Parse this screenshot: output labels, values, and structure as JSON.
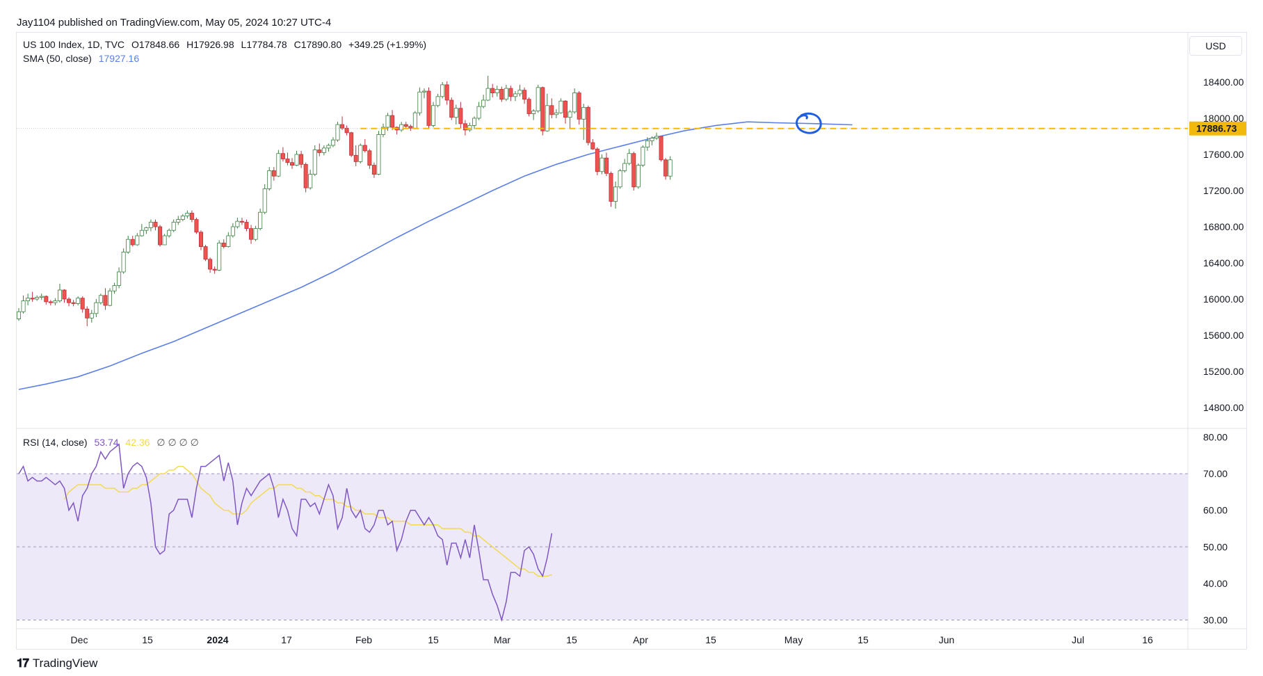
{
  "byline": "Jay1104 published on TradingView.com, May 05, 2024 10:27 UTC-4",
  "currency": "USD",
  "brand": "TradingView",
  "legend": {
    "symbol": "US 100 Index, 1D, TVC",
    "open": "O17848.66",
    "high": "H17926.98",
    "low": "L17784.78",
    "close": "C17890.80",
    "change": "+349.25 (+1.99%)",
    "sma_label": "SMA (50, close)",
    "sma_value": "17927.16",
    "rsi_label": "RSI (14, close)",
    "rsi_value": "53.74",
    "rsi_ma_value": "42.36",
    "rsi_extra": "∅ ∅ ∅ ∅"
  },
  "colors": {
    "up": "#26a69a",
    "up_fill": "#ffffff",
    "down": "#ef5350",
    "sma": "#5b7fe6",
    "rsi": "#7e57c2",
    "rsi_ma": "#f2d94a",
    "level": "#f0b90b",
    "annotation": "#1f5ee0"
  },
  "chart_data": [
    {
      "type": "candlestick",
      "title": "US 100 Index, 1D, TVC",
      "ylim": [
        14600,
        18800
      ],
      "yticks": [
        "14800.00",
        "15200.00",
        "15600.00",
        "16000.00",
        "16400.00",
        "16800.00",
        "17200.00",
        "17600.00",
        "18000.00",
        "18400.00"
      ],
      "price_label": "17886.73",
      "level": 17886.73,
      "x_ticks": [
        "Dec",
        "15",
        "2024",
        "17",
        "Feb",
        "15",
        "Mar",
        "15",
        "Apr",
        "15",
        "May",
        "15",
        "Jun",
        "Jul",
        "16"
      ],
      "candles": [
        [
          15780,
          15900,
          15760,
          15860
        ],
        [
          15860,
          16040,
          15840,
          15980
        ],
        [
          15980,
          16060,
          15930,
          16010
        ],
        [
          16010,
          16080,
          15970,
          16000
        ],
        [
          16000,
          16040,
          15980,
          16020
        ],
        [
          16020,
          16060,
          15990,
          16030
        ],
        [
          16030,
          16040,
          15940,
          15970
        ],
        [
          15970,
          15990,
          15930,
          15960
        ],
        [
          15960,
          16010,
          15930,
          15980
        ],
        [
          15980,
          16170,
          15960,
          16100
        ],
        [
          16100,
          16110,
          15960,
          16000
        ],
        [
          16000,
          16020,
          15920,
          15960
        ],
        [
          15960,
          15990,
          15920,
          15950
        ],
        [
          15950,
          16030,
          15930,
          16010
        ],
        [
          16010,
          16030,
          15850,
          15890
        ],
        [
          15890,
          15920,
          15700,
          15790
        ],
        [
          15790,
          15880,
          15740,
          15840
        ],
        [
          15840,
          16000,
          15800,
          15960
        ],
        [
          15960,
          16060,
          15940,
          16040
        ],
        [
          16040,
          16120,
          15880,
          15930
        ],
        [
          15930,
          16120,
          15920,
          16090
        ],
        [
          16090,
          16180,
          16060,
          16150
        ],
        [
          16150,
          16350,
          16120,
          16300
        ],
        [
          16300,
          16560,
          16280,
          16520
        ],
        [
          16520,
          16700,
          16500,
          16660
        ],
        [
          16660,
          16700,
          16580,
          16600
        ],
        [
          16600,
          16730,
          16590,
          16700
        ],
        [
          16700,
          16830,
          16690,
          16760
        ],
        [
          16760,
          16800,
          16720,
          16790
        ],
        [
          16790,
          16880,
          16750,
          16850
        ],
        [
          16850,
          16880,
          16760,
          16800
        ],
        [
          16800,
          16820,
          16580,
          16600
        ],
        [
          16600,
          16720,
          16600,
          16700
        ],
        [
          16700,
          16780,
          16680,
          16760
        ],
        [
          16760,
          16880,
          16740,
          16850
        ],
        [
          16850,
          16920,
          16820,
          16880
        ],
        [
          16880,
          16940,
          16860,
          16920
        ],
        [
          16920,
          16980,
          16890,
          16950
        ],
        [
          16950,
          16980,
          16850,
          16880
        ],
        [
          16880,
          16900,
          16720,
          16740
        ],
        [
          16740,
          16760,
          16540,
          16580
        ],
        [
          16580,
          16600,
          16420,
          16440
        ],
        [
          16440,
          16460,
          16290,
          16330
        ],
        [
          16330,
          16360,
          16280,
          16320
        ],
        [
          16320,
          16650,
          16310,
          16620
        ],
        [
          16620,
          16660,
          16560,
          16580
        ],
        [
          16580,
          16740,
          16570,
          16700
        ],
        [
          16700,
          16840,
          16680,
          16800
        ],
        [
          16800,
          16900,
          16780,
          16860
        ],
        [
          16860,
          16900,
          16820,
          16850
        ],
        [
          16850,
          16880,
          16750,
          16780
        ],
        [
          16780,
          16820,
          16610,
          16660
        ],
        [
          16660,
          16810,
          16640,
          16780
        ],
        [
          16780,
          17000,
          16760,
          16960
        ],
        [
          16960,
          17270,
          16940,
          17220
        ],
        [
          17220,
          17460,
          17200,
          17420
        ],
        [
          17420,
          17460,
          17310,
          17360
        ],
        [
          17360,
          17650,
          17350,
          17610
        ],
        [
          17610,
          17680,
          17520,
          17550
        ],
        [
          17550,
          17620,
          17480,
          17510
        ],
        [
          17510,
          17560,
          17440,
          17480
        ],
        [
          17480,
          17640,
          17470,
          17600
        ],
        [
          17600,
          17640,
          17450,
          17490
        ],
        [
          17490,
          17510,
          17180,
          17230
        ],
        [
          17230,
          17430,
          17210,
          17380
        ],
        [
          17380,
          17700,
          17360,
          17650
        ],
        [
          17650,
          17720,
          17580,
          17620
        ],
        [
          17620,
          17700,
          17590,
          17670
        ],
        [
          17670,
          17720,
          17630,
          17700
        ],
        [
          17700,
          17790,
          17680,
          17760
        ],
        [
          17760,
          17960,
          17740,
          17930
        ],
        [
          17930,
          18020,
          17870,
          17890
        ],
        [
          17890,
          17920,
          17810,
          17840
        ],
        [
          17840,
          17850,
          17570,
          17590
        ],
        [
          17590,
          17700,
          17470,
          17520
        ],
        [
          17520,
          17720,
          17500,
          17700
        ],
        [
          17700,
          17770,
          17620,
          17640
        ],
        [
          17640,
          17660,
          17440,
          17480
        ],
        [
          17480,
          17510,
          17340,
          17380
        ],
        [
          17380,
          17860,
          17370,
          17820
        ],
        [
          17820,
          17940,
          17790,
          17900
        ],
        [
          17900,
          18060,
          17860,
          18030
        ],
        [
          18030,
          18090,
          17870,
          17900
        ],
        [
          17900,
          17910,
          17820,
          17870
        ],
        [
          17870,
          17960,
          17850,
          17930
        ],
        [
          17930,
          17960,
          17880,
          17910
        ],
        [
          17910,
          17930,
          17860,
          17890
        ],
        [
          17890,
          18080,
          17880,
          18060
        ],
        [
          18060,
          18340,
          18030,
          18290
        ],
        [
          18290,
          18330,
          18220,
          18300
        ],
        [
          18300,
          18340,
          17880,
          17920
        ],
        [
          17920,
          18180,
          17900,
          18140
        ],
        [
          18140,
          18270,
          18120,
          18240
        ],
        [
          18240,
          18400,
          18220,
          18370
        ],
        [
          18370,
          18410,
          18150,
          18200
        ],
        [
          18200,
          18230,
          17980,
          18010
        ],
        [
          18010,
          18150,
          17930,
          18110
        ],
        [
          18110,
          18180,
          17890,
          17940
        ],
        [
          17940,
          17980,
          17810,
          17870
        ],
        [
          17870,
          17950,
          17850,
          17920
        ],
        [
          17920,
          18020,
          17880,
          18000
        ],
        [
          18000,
          18180,
          17980,
          18130
        ],
        [
          18130,
          18260,
          18110,
          18200
        ],
        [
          18200,
          18470,
          18190,
          18330
        ],
        [
          18330,
          18380,
          18230,
          18280
        ],
        [
          18280,
          18360,
          18240,
          18320
        ],
        [
          18320,
          18350,
          18180,
          18210
        ],
        [
          18210,
          18370,
          18190,
          18330
        ],
        [
          18330,
          18360,
          18190,
          18240
        ],
        [
          18240,
          18300,
          18190,
          18270
        ],
        [
          18270,
          18370,
          18240,
          18310
        ],
        [
          18310,
          18340,
          18160,
          18210
        ],
        [
          18210,
          18230,
          18020,
          18050
        ],
        [
          18050,
          18100,
          17980,
          18080
        ],
        [
          18080,
          18370,
          18060,
          18340
        ],
        [
          18340,
          18350,
          17810,
          17860
        ],
        [
          17860,
          18270,
          17850,
          18140
        ],
        [
          18140,
          18220,
          18000,
          18040
        ],
        [
          18040,
          18100,
          18000,
          18060
        ],
        [
          18060,
          18220,
          18050,
          18190
        ],
        [
          18190,
          18200,
          17940,
          18010
        ],
        [
          18010,
          18090,
          17880,
          18070
        ],
        [
          18070,
          18330,
          18050,
          18280
        ],
        [
          18280,
          18300,
          17930,
          17990
        ],
        [
          17990,
          18160,
          17760,
          18120
        ],
        [
          18120,
          18140,
          17700,
          17730
        ],
        [
          17730,
          17770,
          17650,
          17660
        ],
        [
          17660,
          17680,
          17370,
          17410
        ],
        [
          17410,
          17600,
          17380,
          17560
        ],
        [
          17560,
          17620,
          17360,
          17390
        ],
        [
          17390,
          17410,
          17020,
          17080
        ],
        [
          17080,
          17300,
          17000,
          17240
        ],
        [
          17240,
          17440,
          17220,
          17420
        ],
        [
          17420,
          17550,
          17400,
          17500
        ],
        [
          17500,
          17660,
          17480,
          17610
        ],
        [
          17610,
          17630,
          17200,
          17240
        ],
        [
          17240,
          17500,
          17220,
          17480
        ],
        [
          17480,
          17700,
          17460,
          17680
        ],
        [
          17680,
          17790,
          17640,
          17750
        ],
        [
          17750,
          17800,
          17700,
          17780
        ],
        [
          17780,
          17840,
          17760,
          17800
        ],
        [
          17800,
          17800,
          17520,
          17540
        ],
        [
          17540,
          17560,
          17320,
          17360
        ],
        [
          17360,
          17580,
          17320,
          17540
        ]
      ],
      "sma50": [
        [
          0,
          15000
        ],
        [
          6,
          15060
        ],
        [
          13,
          15140
        ],
        [
          20,
          15260
        ],
        [
          27,
          15400
        ],
        [
          34,
          15530
        ],
        [
          41,
          15680
        ],
        [
          48,
          15830
        ],
        [
          55,
          15980
        ],
        [
          62,
          16130
        ],
        [
          69,
          16300
        ],
        [
          76,
          16490
        ],
        [
          83,
          16680
        ],
        [
          90,
          16860
        ],
        [
          97,
          17030
        ],
        [
          104,
          17200
        ],
        [
          111,
          17360
        ],
        [
          118,
          17490
        ],
        [
          125,
          17600
        ],
        [
          132,
          17690
        ],
        [
          139,
          17780
        ],
        [
          146,
          17860
        ],
        [
          153,
          17920
        ],
        [
          160,
          17960
        ],
        [
          166,
          17950
        ],
        [
          175,
          17940
        ],
        [
          183,
          17927
        ]
      ]
    },
    {
      "type": "line",
      "title": "RSI (14, close)",
      "ylim": [
        28,
        82
      ],
      "yticks": [
        "30.00",
        "40.00",
        "50.00",
        "60.00",
        "70.00",
        "80.00"
      ],
      "band": [
        30,
        70
      ],
      "midline": 50,
      "rsi": [
        70,
        72,
        68,
        69,
        68,
        68,
        69,
        68,
        67,
        68,
        66,
        60,
        62,
        57,
        64,
        66,
        70,
        72,
        76,
        74,
        76,
        77,
        78,
        66,
        70,
        72,
        73,
        72,
        69,
        62,
        50,
        48,
        49,
        59,
        60,
        63,
        63,
        63,
        58,
        66,
        72,
        72,
        73,
        74,
        75,
        68,
        73,
        68,
        56,
        62,
        66,
        64,
        66,
        68,
        69,
        70,
        66,
        58,
        63,
        60,
        55,
        53,
        63,
        63,
        61,
        62,
        59,
        63,
        67,
        64,
        55,
        58,
        66,
        60,
        58,
        60,
        55,
        54,
        56,
        60,
        60,
        56,
        57,
        49,
        52,
        57,
        60,
        60,
        58,
        56,
        58,
        56,
        53,
        52,
        45,
        51,
        51,
        47,
        52,
        47,
        56,
        49,
        41,
        41,
        37,
        34,
        30,
        35,
        43,
        43,
        42,
        49,
        50,
        48,
        44,
        42,
        47,
        53.7
      ],
      "rsi_ma": [
        63,
        65,
        66,
        67,
        67,
        67,
        67,
        67,
        67,
        66,
        66,
        66,
        65,
        65,
        65,
        66,
        66,
        67,
        67,
        68,
        69,
        70,
        70,
        71,
        71,
        72,
        72,
        71,
        70,
        68,
        66,
        65,
        64,
        62,
        61,
        60,
        60,
        59,
        59,
        59,
        60,
        62,
        63,
        64,
        65,
        66,
        66,
        67,
        67,
        67,
        67,
        66,
        66,
        65,
        65,
        64,
        64,
        63,
        63,
        63,
        62,
        62,
        61,
        61,
        60,
        60,
        59,
        59,
        59,
        58,
        58,
        58,
        57,
        57,
        57,
        57,
        56,
        56,
        56,
        56,
        56,
        56,
        56,
        55,
        55,
        55,
        55,
        55,
        54,
        54,
        53,
        53,
        52,
        51,
        50,
        49,
        48,
        47,
        46,
        45,
        44,
        44,
        43,
        43,
        42,
        42,
        42,
        42.4
      ]
    }
  ]
}
